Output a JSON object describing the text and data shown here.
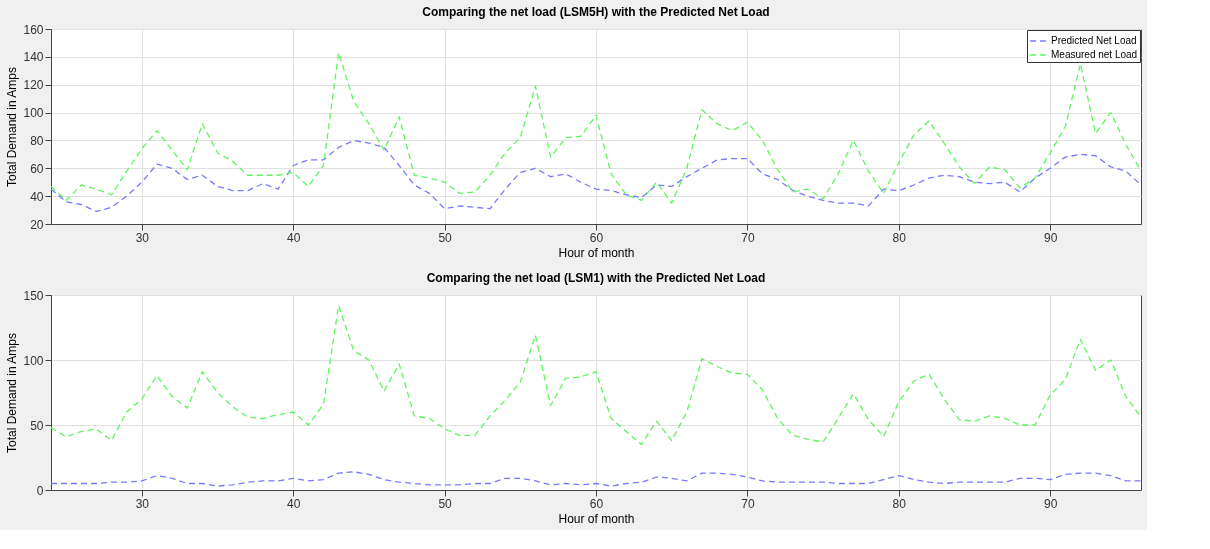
{
  "chart_data": [
    {
      "type": "line",
      "title": "Comparing the net load (LSM5H) with the Predicted Net Load",
      "xlabel": "Hour of month",
      "ylabel": "Total Demand in Amps",
      "x": [
        24,
        25,
        26,
        27,
        28,
        29,
        30,
        31,
        32,
        33,
        34,
        35,
        36,
        37,
        38,
        39,
        40,
        41,
        42,
        43,
        44,
        45,
        46,
        47,
        48,
        49,
        50,
        51,
        52,
        53,
        54,
        55,
        56,
        57,
        58,
        59,
        60,
        61,
        62,
        63,
        64,
        65,
        66,
        67,
        68,
        69,
        70,
        71,
        72,
        73,
        74,
        75,
        76,
        77,
        78,
        79,
        80,
        81,
        82,
        83,
        84,
        85,
        86,
        87,
        88,
        89,
        90,
        91,
        92,
        93,
        94,
        95,
        96
      ],
      "series": [
        {
          "name": "Predicted Net Load",
          "color": "#7878ff",
          "values": [
            45,
            36,
            34,
            29,
            32,
            40,
            50,
            63,
            60,
            52,
            55,
            47,
            44,
            44,
            49,
            45,
            62,
            66,
            66,
            75,
            80,
            78,
            75,
            62,
            48,
            42,
            31,
            33,
            32,
            31,
            45,
            57,
            60,
            54,
            56,
            50,
            45,
            44,
            41,
            39,
            48,
            47,
            54,
            60,
            66,
            67,
            67,
            56,
            52,
            44,
            40,
            37,
            35,
            35,
            33,
            45,
            44,
            48,
            53,
            55,
            54,
            50,
            49,
            50,
            43,
            53,
            60,
            68,
            70,
            69,
            61,
            58,
            48
          ]
        },
        {
          "name": "Measured net Load",
          "color": "#5cf55c",
          "values": [
            47,
            37,
            48,
            45,
            41,
            58,
            74,
            87,
            73,
            59,
            92,
            71,
            65,
            55,
            55,
            55,
            57,
            47,
            62,
            143,
            108,
            92,
            73,
            97,
            55,
            53,
            50,
            42,
            43,
            55,
            71,
            82,
            119,
            68,
            82,
            83,
            98,
            56,
            41,
            37,
            50,
            35,
            60,
            102,
            92,
            87,
            93,
            80,
            59,
            43,
            45,
            38,
            56,
            80,
            58,
            42,
            64,
            84,
            94,
            78,
            61,
            49,
            61,
            59,
            46,
            53,
            71,
            90,
            135,
            85,
            100,
            77,
            58
          ]
        }
      ],
      "xlim": [
        24,
        96
      ],
      "xticks": [
        30,
        40,
        50,
        60,
        70,
        80,
        90
      ],
      "ylim": [
        20,
        160
      ],
      "yticks": [
        20,
        40,
        60,
        80,
        100,
        120,
        140,
        160
      ],
      "grid": true,
      "legend": "top right",
      "line_style": "dashed"
    },
    {
      "type": "line",
      "title": "Comparing the net load (LSM1) with the Predicted Net Load",
      "xlabel": "Hour of month",
      "ylabel": "Total Demand in Amps",
      "x": [
        24,
        25,
        26,
        27,
        28,
        29,
        30,
        31,
        32,
        33,
        34,
        35,
        36,
        37,
        38,
        39,
        40,
        41,
        42,
        43,
        44,
        45,
        46,
        47,
        48,
        49,
        50,
        51,
        52,
        53,
        54,
        55,
        56,
        57,
        58,
        59,
        60,
        61,
        62,
        63,
        64,
        65,
        66,
        67,
        68,
        69,
        70,
        71,
        72,
        73,
        74,
        75,
        76,
        77,
        78,
        79,
        80,
        81,
        82,
        83,
        84,
        85,
        86,
        87,
        88,
        89,
        90,
        91,
        92,
        93,
        94,
        95,
        96
      ],
      "series": [
        {
          "name": "Predicted Net Load",
          "color": "#7878ff",
          "values": [
            5,
            5,
            5,
            5,
            6,
            6,
            7,
            11,
            9,
            5,
            5,
            3,
            4,
            6,
            7,
            7,
            9,
            7,
            8,
            13,
            14,
            12,
            8,
            6,
            5,
            4,
            4,
            4,
            5,
            5,
            9,
            9,
            7,
            4,
            5,
            4,
            5,
            3,
            5,
            6,
            10,
            9,
            7,
            13,
            13,
            12,
            10,
            7,
            6,
            6,
            6,
            6,
            5,
            5,
            5,
            8,
            11,
            8,
            6,
            5,
            6,
            6,
            6,
            6,
            9,
            9,
            8,
            12,
            13,
            13,
            11,
            7,
            7
          ]
        },
        {
          "name": "Measured net Load",
          "color": "#5cf55c",
          "values": [
            48,
            41,
            45,
            47,
            38,
            60,
            70,
            88,
            72,
            63,
            91,
            75,
            64,
            56,
            55,
            58,
            60,
            50,
            66,
            142,
            107,
            100,
            76,
            97,
            57,
            55,
            47,
            42,
            42,
            57,
            69,
            83,
            119,
            65,
            86,
            87,
            91,
            55,
            45,
            35,
            53,
            38,
            60,
            101,
            95,
            90,
            89,
            77,
            55,
            42,
            39,
            37,
            55,
            74,
            54,
            41,
            68,
            84,
            89,
            70,
            54,
            53,
            57,
            55,
            50,
            50,
            73,
            85,
            116,
            92,
            100,
            72,
            56
          ]
        }
      ],
      "xlim": [
        24,
        96
      ],
      "xticks": [
        30,
        40,
        50,
        60,
        70,
        80,
        90
      ],
      "ylim": [
        0,
        150
      ],
      "yticks": [
        0,
        50,
        100,
        150
      ],
      "grid": true,
      "legend": "top right",
      "line_style": "dashed"
    }
  ]
}
